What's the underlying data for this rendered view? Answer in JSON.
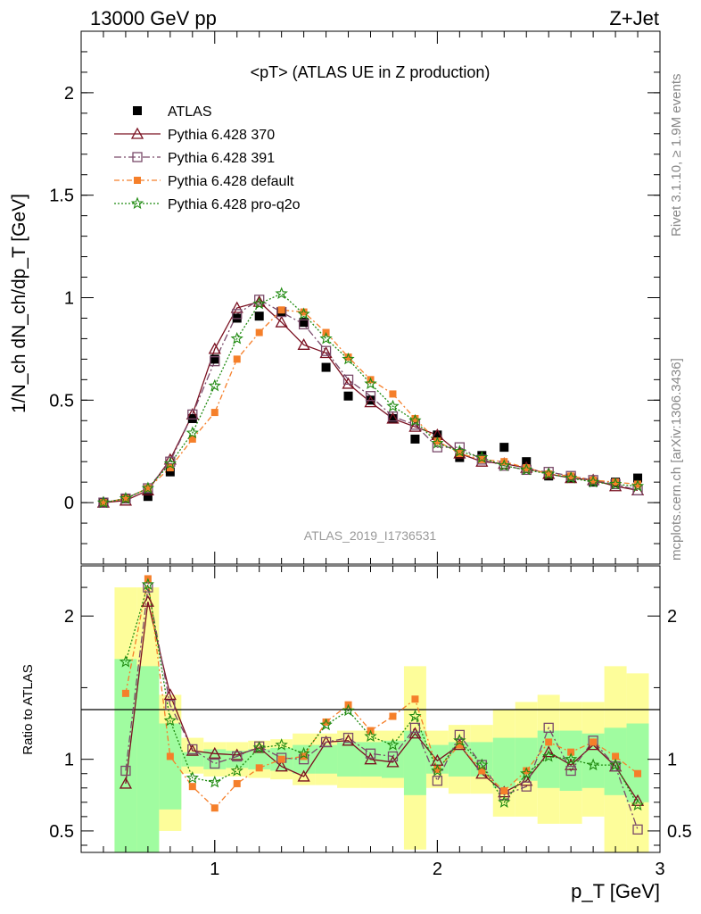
{
  "header": {
    "left": "13000 GeV pp",
    "right": "Z+Jet"
  },
  "side_text": {
    "top": "Rivet 3.1.10, ≥ 1.9M events",
    "bottom": "mcplots.cern.ch [arXiv:1306.3436]"
  },
  "watermark": "ATLAS_2019_I1736531",
  "colors": {
    "atlas": "#000000",
    "p370": "#7a1020",
    "p391": "#7a4a6a",
    "pdef": "#f57f2a",
    "pq2o": "#1f8a10",
    "band_inner": "#a0fca0",
    "band_outer": "#fdfd9a"
  },
  "chart_data": [
    {
      "type": "line",
      "title": "<pT> (ATLAS UE in Z production)",
      "ylabel": "1/N_ch dN_ch/dp_T [GeV]",
      "xlabel": "p_T [GeV]",
      "xlim": [
        0.4,
        3.0
      ],
      "ylim": [
        -0.3,
        2.3
      ],
      "yticks": [
        0,
        0.5,
        1,
        1.5,
        2
      ],
      "ytick_labels": [
        "0",
        "0.5",
        "1",
        "1.5",
        "2"
      ],
      "x": [
        0.5,
        0.6,
        0.7,
        0.8,
        0.9,
        1.0,
        1.1,
        1.2,
        1.3,
        1.4,
        1.5,
        1.6,
        1.7,
        1.8,
        1.9,
        2.0,
        2.1,
        2.2,
        2.3,
        2.4,
        2.5,
        2.6,
        2.7,
        2.8,
        2.9
      ],
      "legend": [
        "ATLAS",
        "Pythia 6.428 370",
        "Pythia 6.428 391",
        "Pythia 6.428 default",
        "Pythia 6.428 pro-q2o"
      ],
      "series": [
        {
          "name": "ATLAS",
          "values": [
            0.0,
            0.02,
            0.03,
            0.15,
            0.41,
            0.7,
            0.9,
            0.91,
            0.93,
            0.88,
            0.66,
            0.52,
            0.5,
            0.41,
            0.31,
            0.33,
            0.22,
            0.23,
            0.27,
            0.2,
            0.13,
            0.12,
            0.1,
            0.1,
            0.12
          ]
        },
        {
          "name": "Pythia 6.428 370",
          "values": [
            0.0,
            0.01,
            0.06,
            0.21,
            0.43,
            0.75,
            0.95,
            0.98,
            0.88,
            0.77,
            0.73,
            0.58,
            0.49,
            0.41,
            0.37,
            0.33,
            0.24,
            0.2,
            0.19,
            0.17,
            0.14,
            0.12,
            0.11,
            0.08,
            0.06
          ]
        },
        {
          "name": "Pythia 6.428 391",
          "values": [
            0.0,
            0.02,
            0.07,
            0.2,
            0.43,
            0.69,
            0.92,
            0.99,
            0.93,
            0.87,
            0.74,
            0.6,
            0.52,
            0.42,
            0.38,
            0.27,
            0.27,
            0.21,
            0.18,
            0.16,
            0.15,
            0.13,
            0.11,
            0.09,
            0.06
          ]
        },
        {
          "name": "Pythia 6.428 default",
          "values": [
            0.0,
            0.02,
            0.07,
            0.17,
            0.31,
            0.44,
            0.7,
            0.83,
            0.94,
            0.93,
            0.83,
            0.71,
            0.6,
            0.53,
            0.41,
            0.3,
            0.24,
            0.21,
            0.2,
            0.17,
            0.14,
            0.13,
            0.11,
            0.1,
            0.09
          ]
        },
        {
          "name": "Pythia 6.428 pro-q2o",
          "values": [
            0.0,
            0.02,
            0.07,
            0.19,
            0.34,
            0.57,
            0.8,
            0.97,
            1.02,
            0.92,
            0.8,
            0.7,
            0.58,
            0.47,
            0.4,
            0.29,
            0.25,
            0.22,
            0.18,
            0.16,
            0.14,
            0.12,
            0.1,
            0.09,
            0.08
          ]
        }
      ]
    },
    {
      "type": "line",
      "ylabel": "Ratio to ATLAS",
      "xlabel": "p_T [GeV]",
      "xlim": [
        0.4,
        3.0
      ],
      "ylim": [
        0.35,
        2.35
      ],
      "yticks": [
        0.5,
        1,
        2
      ],
      "ytick_labels": [
        "0.5",
        "1",
        "2"
      ],
      "xticks": [
        1,
        2,
        3
      ],
      "xtick_labels": [
        "1",
        "2",
        "3"
      ],
      "x": [
        0.6,
        0.7,
        0.8,
        0.9,
        1.0,
        1.1,
        1.2,
        1.3,
        1.4,
        1.5,
        1.6,
        1.7,
        1.8,
        1.9,
        2.0,
        2.1,
        2.2,
        2.3,
        2.4,
        2.5,
        2.6,
        2.7,
        2.8,
        2.9
      ],
      "band_edges": [
        0.55,
        0.65,
        0.75,
        0.85,
        0.95,
        1.05,
        1.15,
        1.25,
        1.35,
        1.45,
        1.55,
        1.65,
        1.75,
        1.85,
        1.95,
        2.05,
        2.15,
        2.25,
        2.35,
        2.45,
        2.55,
        2.65,
        2.75,
        2.85,
        2.95
      ],
      "band_inner": [
        [
          0.3,
          1.7
        ],
        [
          0.35,
          1.65
        ],
        [
          0.65,
          1.25
        ],
        [
          0.95,
          1.05
        ],
        [
          0.93,
          1.07
        ],
        [
          0.94,
          1.06
        ],
        [
          0.93,
          1.07
        ],
        [
          0.92,
          1.08
        ],
        [
          0.9,
          1.1
        ],
        [
          0.9,
          1.1
        ],
        [
          0.88,
          1.12
        ],
        [
          0.88,
          1.12
        ],
        [
          0.87,
          1.13
        ],
        [
          0.75,
          1.2
        ],
        [
          0.9,
          1.1
        ],
        [
          0.88,
          1.12
        ],
        [
          0.88,
          1.12
        ],
        [
          0.8,
          1.15
        ],
        [
          0.85,
          1.15
        ],
        [
          0.8,
          1.2
        ],
        [
          0.78,
          1.2
        ],
        [
          0.8,
          1.18
        ],
        [
          0.75,
          1.22
        ],
        [
          0.7,
          1.25
        ]
      ],
      "band_outer": [
        [
          0.3,
          2.2
        ],
        [
          0.3,
          2.2
        ],
        [
          0.5,
          1.45
        ],
        [
          0.9,
          1.15
        ],
        [
          0.88,
          1.12
        ],
        [
          0.88,
          1.12
        ],
        [
          0.87,
          1.13
        ],
        [
          0.86,
          1.14
        ],
        [
          0.82,
          1.18
        ],
        [
          0.82,
          1.18
        ],
        [
          0.8,
          1.2
        ],
        [
          0.8,
          1.2
        ],
        [
          0.8,
          1.2
        ],
        [
          0.37,
          1.65
        ],
        [
          0.8,
          1.2
        ],
        [
          0.76,
          1.24
        ],
        [
          0.76,
          1.24
        ],
        [
          0.6,
          1.35
        ],
        [
          0.6,
          1.4
        ],
        [
          0.55,
          1.45
        ],
        [
          0.55,
          1.4
        ],
        [
          0.6,
          1.4
        ],
        [
          0.35,
          1.65
        ],
        [
          0.35,
          1.6
        ]
      ],
      "series": [
        {
          "name": "Pythia 6.428 370",
          "values": [
            0.83,
            2.1,
            1.45,
            1.06,
            1.04,
            1.03,
            1.08,
            0.95,
            0.88,
            1.12,
            1.13,
            1.0,
            0.98,
            1.18,
            0.99,
            1.1,
            0.9,
            0.77,
            0.85,
            1.05,
            0.96,
            1.1,
            0.95,
            0.71
          ]
        },
        {
          "name": "Pythia 6.428 391",
          "values": [
            0.92,
            2.2,
            1.38,
            1.07,
            0.97,
            1.02,
            1.09,
            1.01,
            1.0,
            1.12,
            1.15,
            1.04,
            1.02,
            1.22,
            0.85,
            1.17,
            0.96,
            0.75,
            0.81,
            1.22,
            0.92,
            1.13,
            0.95,
            0.51
          ]
        },
        {
          "name": "Pythia 6.428 default",
          "values": [
            1.46,
            2.26,
            1.02,
            0.81,
            0.66,
            0.83,
            0.94,
            1.0,
            1.02,
            1.26,
            1.38,
            1.2,
            1.3,
            1.42,
            0.93,
            1.1,
            0.92,
            0.78,
            0.92,
            1.12,
            1.05,
            1.12,
            1.02,
            0.9
          ]
        },
        {
          "name": "Pythia 6.428 pro-q2o",
          "values": [
            1.68,
            2.22,
            1.27,
            0.87,
            0.84,
            0.92,
            1.08,
            1.1,
            1.04,
            1.24,
            1.34,
            1.16,
            1.1,
            1.3,
            0.92,
            1.13,
            0.96,
            0.7,
            0.9,
            1.02,
            1.0,
            0.96,
            0.96,
            0.68
          ]
        }
      ]
    }
  ]
}
